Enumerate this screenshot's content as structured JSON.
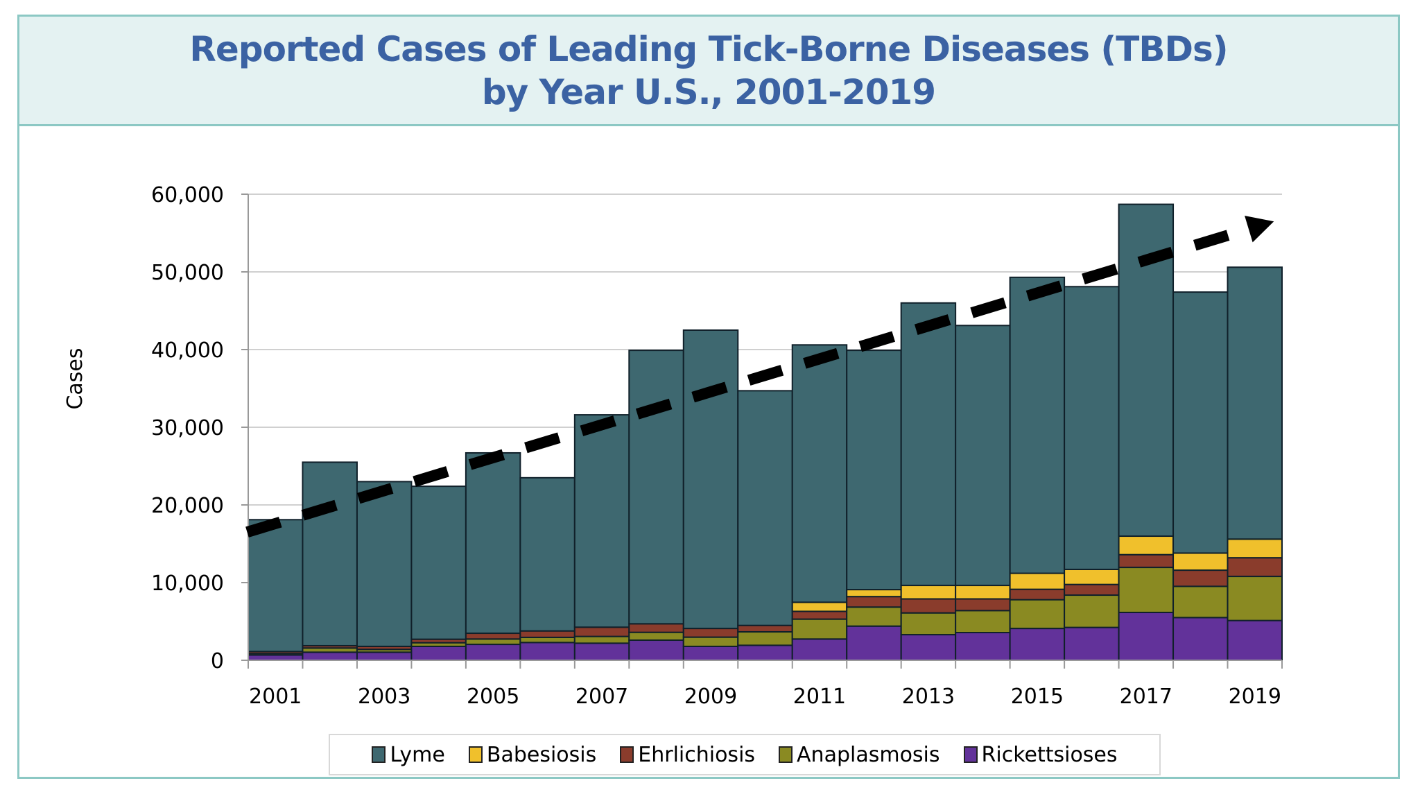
{
  "title": {
    "line1": "Reported Cases of Leading Tick-Borne Diseases (TBDs)",
    "line2": "by Year U.S., 2001-2019"
  },
  "chart_data": {
    "type": "bar",
    "stacked": true,
    "title": "Reported Cases of Leading Tick-Borne Diseases (TBDs) by Year U.S., 2001-2019",
    "xlabel": "",
    "ylabel": "Cases",
    "ylim": [
      0,
      60000
    ],
    "yticks": [
      "0",
      "10,000",
      "20,000",
      "30,000",
      "40,000",
      "50,000",
      "60,000"
    ],
    "ytick_values": [
      0,
      10000,
      20000,
      30000,
      40000,
      50000,
      60000
    ],
    "xtick_labels": [
      "2001",
      "2003",
      "2005",
      "2007",
      "2009",
      "2011",
      "2013",
      "2015",
      "2017",
      "2019"
    ],
    "categories": [
      "2001",
      "2002",
      "2003",
      "2004",
      "2005",
      "2006",
      "2007",
      "2008",
      "2009",
      "2010",
      "2011",
      "2012",
      "2013",
      "2014",
      "2015",
      "2016",
      "2017",
      "2018",
      "2019"
    ],
    "grid": "horizontal",
    "legend_position": "bottom",
    "series": [
      {
        "name": "Rickettsioses",
        "color": "#62329a",
        "values": [
          680,
          1040,
          1040,
          1790,
          2050,
          2290,
          2200,
          2590,
          1790,
          1930,
          2740,
          4400,
          3300,
          3570,
          4100,
          4230,
          6160,
          5500,
          5120
        ]
      },
      {
        "name": "Anaplasmosis",
        "color": "#8a8a22",
        "values": [
          190,
          540,
          360,
          470,
          690,
          660,
          870,
          1010,
          1190,
          1730,
          2560,
          2450,
          2800,
          2830,
          3700,
          4160,
          5800,
          4020,
          5680
        ]
      },
      {
        "name": "Ehrlichiosis",
        "color": "#8a3c2c",
        "values": [
          260,
          300,
          390,
          450,
          740,
          830,
          1190,
          1100,
          1120,
          830,
          1000,
          1350,
          1800,
          1500,
          1340,
          1370,
          1640,
          2080,
          2400
        ]
      },
      {
        "name": "Babesiosis",
        "color": "#f0c02c",
        "values": [
          0,
          0,
          0,
          0,
          0,
          0,
          0,
          0,
          0,
          0,
          1170,
          900,
          1740,
          1740,
          2060,
          1940,
          2380,
          2200,
          2400
        ]
      },
      {
        "name": "Lyme",
        "color": "#3e6870",
        "values": [
          16970,
          23620,
          21210,
          19690,
          23220,
          19720,
          27340,
          35200,
          38400,
          30210,
          33130,
          30800,
          36360,
          33460,
          38100,
          36400,
          42720,
          33600,
          35000
        ]
      }
    ],
    "legend_order": [
      "Lyme",
      "Babesiosis",
      "Ehrlichiosis",
      "Anaplasmosis",
      "Rickettsioses"
    ],
    "annotations": [
      {
        "type": "dashed-trend-arrow",
        "color": "#000000",
        "from": {
          "x": 2001,
          "y": 16500
        },
        "to": {
          "x": 2019,
          "y": 56500
        }
      }
    ]
  }
}
